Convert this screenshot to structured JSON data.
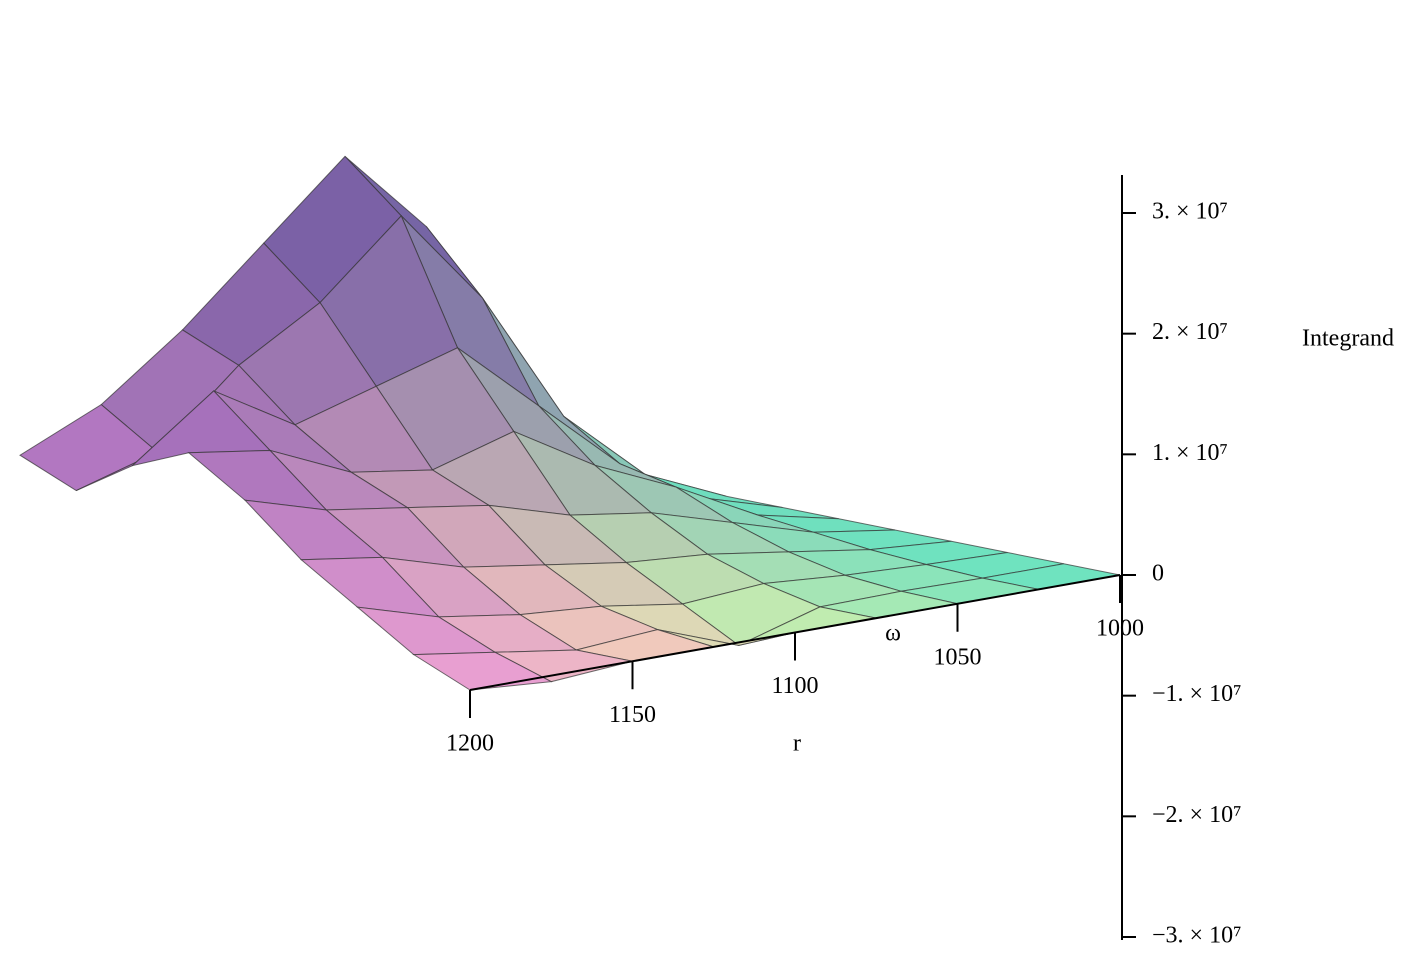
{
  "chart_data": {
    "type": "surface",
    "xlabel": "r",
    "ylabel": "ω",
    "zlabel": "Integrand",
    "x": [
      1000,
      1025,
      1050,
      1075,
      1100,
      1125,
      1150,
      1175,
      1200
    ],
    "y": [
      0,
      25,
      50,
      75,
      100,
      125,
      150,
      175,
      200
    ],
    "z": [
      [
        0,
        0,
        0,
        0,
        0,
        0,
        0,
        -500000,
        0
      ],
      [
        0,
        0,
        100000,
        0,
        -2000000,
        500000,
        0,
        1000000,
        2000000
      ],
      [
        0,
        200000,
        500000,
        1000000,
        500000,
        1500000,
        2000000,
        3000000,
        5000000
      ],
      [
        0,
        500000,
        1500000,
        2500000,
        3000000,
        4000000,
        5000000,
        7000000,
        8000000
      ],
      [
        0,
        1000000,
        3000000,
        5000000,
        6000000,
        8000000,
        9000000,
        10000000,
        12000000
      ],
      [
        0,
        1500000,
        5000000,
        8000000,
        12000000,
        10000000,
        11000000,
        14000000,
        15000000
      ],
      [
        0,
        2000000,
        6000000,
        12000000,
        18000000,
        16000000,
        14000000,
        18000000,
        13000000
      ],
      [
        0,
        3000000,
        9000000,
        20000000,
        28000000,
        22000000,
        18000000,
        12000000,
        10000000
      ],
      [
        0,
        3000000,
        12000000,
        25000000,
        32000000,
        26000000,
        20000000,
        15000000,
        12000000
      ]
    ],
    "xlim": [
      1000,
      1200
    ],
    "xticks": [
      1000,
      1050,
      1100,
      1150,
      1200
    ],
    "ylim": [
      0,
      200
    ],
    "zlim": [
      -30000000,
      30000000
    ],
    "zticks": [
      {
        "value": -30000000,
        "label": "−3. × 10⁷"
      },
      {
        "value": -20000000,
        "label": "−2. × 10⁷"
      },
      {
        "value": -10000000,
        "label": "−1. × 10⁷"
      },
      0,
      {
        "value": 10000000,
        "label": "1. × 10⁷"
      },
      {
        "value": 20000000,
        "label": "2. × 10⁷"
      },
      {
        "value": 30000000,
        "label": "3. × 10⁷"
      }
    ],
    "colors": [
      "#6fe3bf",
      "#f6f2a6",
      "#e88ddd",
      "#6248a0"
    ]
  }
}
